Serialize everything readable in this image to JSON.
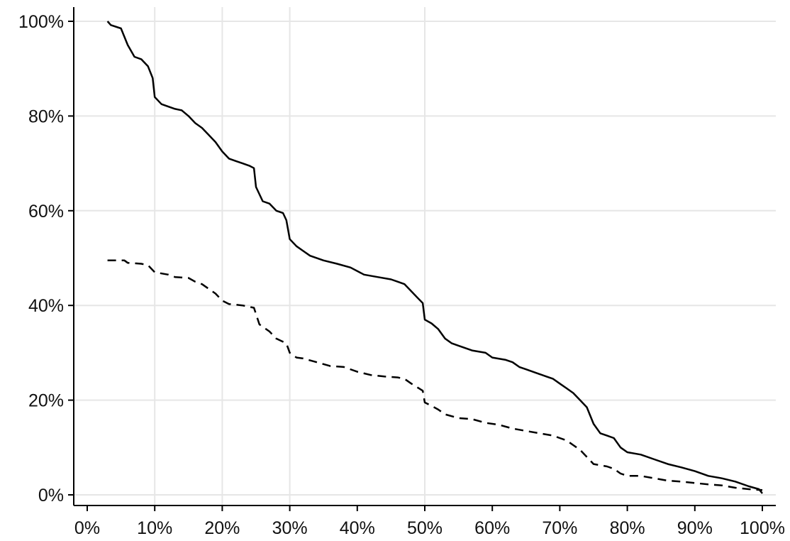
{
  "chart_data": {
    "type": "line",
    "title": "",
    "xlabel": "",
    "ylabel": "",
    "xlim": [
      0,
      100
    ],
    "ylim": [
      0,
      100
    ],
    "x_ticks": [
      0,
      10,
      20,
      30,
      40,
      50,
      60,
      70,
      80,
      90,
      100
    ],
    "y_ticks": [
      0,
      20,
      40,
      60,
      80,
      100
    ],
    "x_tick_labels": [
      "0%",
      "10%",
      "20%",
      "30%",
      "40%",
      "50%",
      "60%",
      "70%",
      "80%",
      "90%",
      "100%"
    ],
    "y_tick_labels": [
      "0%",
      "20%",
      "40%",
      "60%",
      "80%",
      "100%"
    ],
    "grid": true,
    "legend": "none",
    "colors": {
      "solid": "#000000",
      "dashed": "#000000",
      "grid": "#e6e6e6",
      "axis": "#000000"
    },
    "series": [
      {
        "style": "solid",
        "points": [
          [
            3,
            100
          ],
          [
            3.5,
            99.2
          ],
          [
            5,
            98.5
          ],
          [
            6,
            95
          ],
          [
            7,
            92.5
          ],
          [
            8,
            92
          ],
          [
            9,
            90.5
          ],
          [
            9.7,
            88
          ],
          [
            10,
            84
          ],
          [
            11,
            82.5
          ],
          [
            12,
            82
          ],
          [
            13,
            81.5
          ],
          [
            14,
            81.2
          ],
          [
            15,
            80
          ],
          [
            16,
            78.5
          ],
          [
            17,
            77.5
          ],
          [
            18,
            76
          ],
          [
            19,
            74.5
          ],
          [
            20,
            72.5
          ],
          [
            21,
            71
          ],
          [
            22,
            70.5
          ],
          [
            23,
            70
          ],
          [
            24,
            69.5
          ],
          [
            24.7,
            69
          ],
          [
            25,
            65
          ],
          [
            26,
            62
          ],
          [
            27,
            61.5
          ],
          [
            28,
            60
          ],
          [
            29,
            59.5
          ],
          [
            29.5,
            58
          ],
          [
            30,
            54
          ],
          [
            31,
            52.5
          ],
          [
            32,
            51.5
          ],
          [
            33,
            50.5
          ],
          [
            35,
            49.5
          ],
          [
            37,
            48.8
          ],
          [
            39,
            48
          ],
          [
            41,
            46.5
          ],
          [
            43,
            46
          ],
          [
            45,
            45.5
          ],
          [
            46,
            45
          ],
          [
            47,
            44.5
          ],
          [
            48,
            43
          ],
          [
            49,
            41.5
          ],
          [
            49.7,
            40.5
          ],
          [
            50,
            37
          ],
          [
            51,
            36.2
          ],
          [
            52,
            35
          ],
          [
            53,
            33
          ],
          [
            54,
            32
          ],
          [
            55,
            31.5
          ],
          [
            57,
            30.5
          ],
          [
            59,
            30
          ],
          [
            60,
            29
          ],
          [
            62,
            28.5
          ],
          [
            63,
            28
          ],
          [
            64,
            27
          ],
          [
            65,
            26.5
          ],
          [
            67,
            25.5
          ],
          [
            68,
            25
          ],
          [
            69,
            24.5
          ],
          [
            70,
            23.5
          ],
          [
            71,
            22.5
          ],
          [
            72,
            21.5
          ],
          [
            73,
            20
          ],
          [
            74,
            18.5
          ],
          [
            75,
            15
          ],
          [
            76,
            13
          ],
          [
            77,
            12.5
          ],
          [
            78,
            12
          ],
          [
            79,
            10
          ],
          [
            80,
            9
          ],
          [
            82,
            8.5
          ],
          [
            84,
            7.5
          ],
          [
            86,
            6.5
          ],
          [
            88,
            5.8
          ],
          [
            90,
            5
          ],
          [
            92,
            4
          ],
          [
            94,
            3.5
          ],
          [
            96,
            2.8
          ],
          [
            98,
            1.8
          ],
          [
            99.5,
            1.2
          ],
          [
            100,
            0.3
          ]
        ]
      },
      {
        "style": "dashed",
        "points": [
          [
            3,
            49.5
          ],
          [
            5.5,
            49.5
          ],
          [
            6,
            49
          ],
          [
            8,
            48.8
          ],
          [
            9,
            48.5
          ],
          [
            10,
            47
          ],
          [
            12,
            46.5
          ],
          [
            13,
            46
          ],
          [
            15,
            45.8
          ],
          [
            16,
            45
          ],
          [
            17,
            44.5
          ],
          [
            18,
            43.5
          ],
          [
            19,
            42.5
          ],
          [
            20,
            41
          ],
          [
            21,
            40.3
          ],
          [
            23,
            40
          ],
          [
            24.7,
            39.5
          ],
          [
            25.5,
            36
          ],
          [
            27,
            34.5
          ],
          [
            28,
            33
          ],
          [
            29.5,
            32
          ],
          [
            30,
            30
          ],
          [
            31,
            29
          ],
          [
            32,
            28.8
          ],
          [
            34,
            28
          ],
          [
            36,
            27.2
          ],
          [
            38,
            27
          ],
          [
            40,
            26
          ],
          [
            42,
            25.3
          ],
          [
            44,
            25
          ],
          [
            46,
            24.8
          ],
          [
            47,
            24.5
          ],
          [
            48,
            23.5
          ],
          [
            49.7,
            22
          ],
          [
            50,
            19.5
          ],
          [
            51,
            18.8
          ],
          [
            52,
            18
          ],
          [
            53,
            17
          ],
          [
            55,
            16.2
          ],
          [
            57,
            16
          ],
          [
            59,
            15.2
          ],
          [
            61,
            14.8
          ],
          [
            63,
            14
          ],
          [
            65,
            13.5
          ],
          [
            67,
            13
          ],
          [
            69,
            12.5
          ],
          [
            70,
            12
          ],
          [
            71,
            11.5
          ],
          [
            72,
            10.5
          ],
          [
            73,
            9.5
          ],
          [
            74,
            8
          ],
          [
            75,
            6.5
          ],
          [
            77,
            6
          ],
          [
            78,
            5.5
          ],
          [
            79,
            4.5
          ],
          [
            80,
            4
          ],
          [
            82,
            4
          ],
          [
            84,
            3.5
          ],
          [
            86,
            3
          ],
          [
            88,
            2.8
          ],
          [
            90,
            2.5
          ],
          [
            92,
            2.2
          ],
          [
            94,
            2
          ],
          [
            96,
            1.5
          ],
          [
            98,
            1.2
          ],
          [
            100,
            1
          ]
        ]
      }
    ]
  }
}
